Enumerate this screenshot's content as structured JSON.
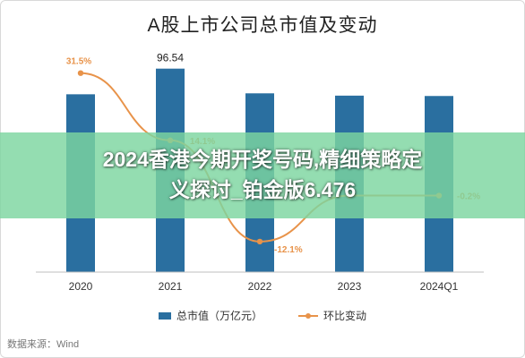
{
  "title": "A股上市公司总市值及变动",
  "banner": {
    "line1": "2024香港今期开奖号码,精细策略定",
    "line2": "义探讨_铂金版6.476"
  },
  "legend": {
    "bar": "总市值（万亿元）",
    "line": "环比变动"
  },
  "source": "数据来源：Wind",
  "colors": {
    "bar": "#2a6fa0",
    "line": "#e8934a"
  },
  "chart_data": {
    "type": "bar",
    "categories": [
      "2020",
      "2021",
      "2022",
      "2023",
      "2024Q1"
    ],
    "series": [
      {
        "name": "总市值（万亿元）",
        "type": "bar",
        "values": [
          84.37,
          96.54,
          84.82,
          83.73,
          83.56
        ],
        "data_labels": [
          "",
          "96.54",
          "",
          "",
          ""
        ]
      },
      {
        "name": "环比变动",
        "type": "line",
        "values": [
          31.5,
          14.1,
          -12.1,
          -0.2,
          -0.2
        ],
        "data_labels": [
          "31.5%",
          "14.1%",
          "-12.1%",
          "",
          "-0.2%"
        ]
      }
    ],
    "ylim_left": [
      0,
      110
    ],
    "ylim_right": [
      -20,
      40
    ],
    "grid": false,
    "legend_position": "bottom"
  }
}
